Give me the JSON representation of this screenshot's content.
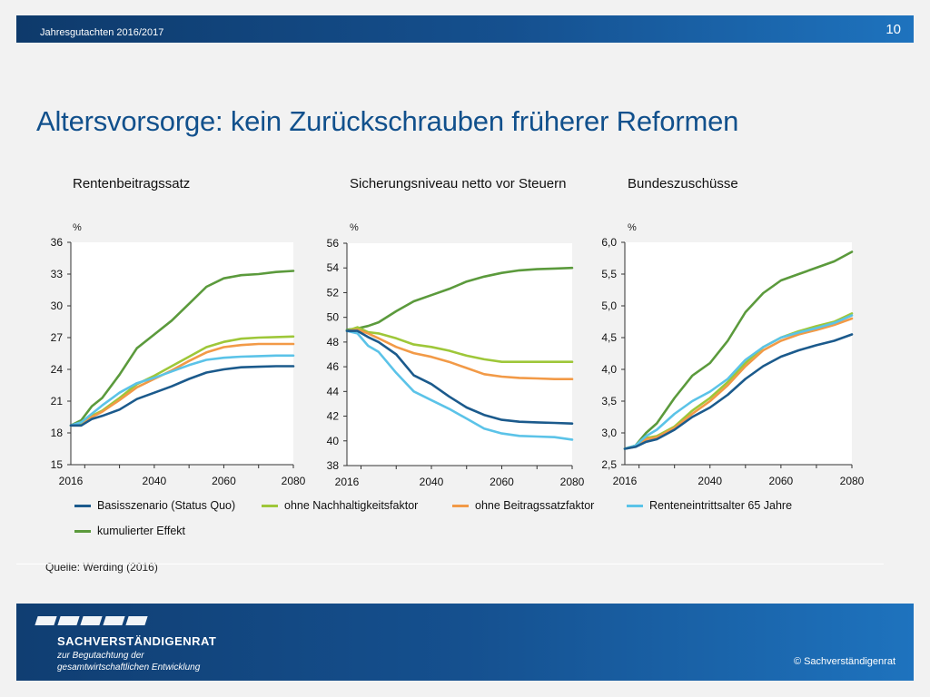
{
  "header": {
    "subtitle": "Jahresgutachten 2016/2017",
    "page_number": "10"
  },
  "title": "Altersvorsorge: kein Zurückschrauben früherer Reformen",
  "source": "Quelle: Werding (2016)",
  "footer": {
    "org_name": "SACHVERSTÄNDIGENRAT",
    "org_sub1": "zur Begutachtung der",
    "org_sub2": "gesamtwirtschaftlichen Entwicklung",
    "copyright": "© Sachverständigenrat"
  },
  "colors": {
    "basis": "#1b5a8c",
    "nachhaltigkeit": "#9ec739",
    "beitrag": "#f29a47",
    "rente65": "#5bc3e8",
    "kumuliert": "#5b9a3c"
  },
  "legend": [
    {
      "key": "basis",
      "label": "Basisszenario (Status Quo)"
    },
    {
      "key": "nachhaltigkeit",
      "label": "ohne Nachhaltigkeitsfaktor"
    },
    {
      "key": "beitrag",
      "label": "ohne Beitragssatzfaktor"
    },
    {
      "key": "rente65",
      "label": "Renteneintrittsalter 65 Jahre"
    },
    {
      "key": "kumuliert",
      "label": "kumulierter Effekt"
    }
  ],
  "chart_data": [
    {
      "type": "line",
      "title": "Rentenbeitragssatz",
      "unit": "%",
      "ylim": [
        15,
        36
      ],
      "yticks": [
        "15",
        "18",
        "21",
        "24",
        "27",
        "30",
        "33",
        "36"
      ],
      "ytick_values": [
        15,
        18,
        21,
        24,
        27,
        30,
        33,
        36
      ],
      "xlim": [
        2016,
        2080
      ],
      "xticks": [
        "2016",
        "2040",
        "2060",
        "2080"
      ],
      "xtick_values": [
        2016,
        2040,
        2060,
        2080
      ],
      "x": [
        2016,
        2019,
        2022,
        2025,
        2030,
        2035,
        2040,
        2045,
        2050,
        2055,
        2060,
        2065,
        2070,
        2075,
        2080
      ],
      "series": [
        {
          "name": "Basisszenario (Status Quo)",
          "key": "basis",
          "values": [
            18.7,
            18.7,
            19.3,
            19.6,
            20.2,
            21.2,
            21.8,
            22.4,
            23.1,
            23.7,
            24.0,
            24.2,
            24.25,
            24.3,
            24.3
          ]
        },
        {
          "name": "ohne Nachhaltigkeitsfaktor",
          "key": "nachhaltigkeit",
          "values": [
            18.7,
            18.8,
            19.6,
            20.1,
            21.3,
            22.6,
            23.4,
            24.3,
            25.2,
            26.1,
            26.6,
            26.9,
            27.0,
            27.05,
            27.1
          ]
        },
        {
          "name": "ohne Beitragssatzfaktor",
          "key": "beitrag",
          "values": [
            18.7,
            18.7,
            19.5,
            20.0,
            21.1,
            22.3,
            23.1,
            23.9,
            24.8,
            25.6,
            26.1,
            26.3,
            26.4,
            26.4,
            26.4
          ]
        },
        {
          "name": "Renteneintrittsalter 65 Jahre",
          "key": "rente65",
          "values": [
            18.7,
            19.0,
            19.8,
            20.6,
            21.8,
            22.7,
            23.2,
            23.8,
            24.4,
            24.9,
            25.1,
            25.2,
            25.25,
            25.3,
            25.3
          ]
        },
        {
          "name": "kumulierter Effekt",
          "key": "kumuliert",
          "values": [
            18.7,
            19.2,
            20.5,
            21.3,
            23.5,
            26.0,
            27.3,
            28.6,
            30.2,
            31.8,
            32.6,
            32.9,
            33.0,
            33.2,
            33.3
          ]
        }
      ]
    },
    {
      "type": "line",
      "title": "Sicherungsniveau netto vor Steuern",
      "unit": "%",
      "ylim": [
        38,
        56
      ],
      "yticks": [
        "38",
        "40",
        "42",
        "44",
        "46",
        "48",
        "50",
        "52",
        "54",
        "56"
      ],
      "ytick_values": [
        38,
        40,
        42,
        44,
        46,
        48,
        50,
        52,
        54,
        56
      ],
      "xlim": [
        2016,
        2080
      ],
      "xticks": [
        "2016",
        "2040",
        "2060",
        "2080"
      ],
      "xtick_values": [
        2016,
        2040,
        2060,
        2080
      ],
      "x": [
        2016,
        2019,
        2022,
        2025,
        2030,
        2035,
        2040,
        2045,
        2050,
        2055,
        2060,
        2065,
        2070,
        2075,
        2080
      ],
      "series": [
        {
          "name": "Basisszenario (Status Quo)",
          "key": "basis",
          "values": [
            48.9,
            48.9,
            48.4,
            48.0,
            47.0,
            45.3,
            44.6,
            43.6,
            42.7,
            42.1,
            41.7,
            41.55,
            41.5,
            41.45,
            41.4
          ]
        },
        {
          "name": "ohne Nachhaltigkeitsfaktor",
          "key": "nachhaltigkeit",
          "values": [
            48.9,
            49.2,
            48.8,
            48.7,
            48.3,
            47.8,
            47.6,
            47.3,
            46.9,
            46.6,
            46.4,
            46.4,
            46.4,
            46.4,
            46.4
          ]
        },
        {
          "name": "ohne Beitragssatzfaktor",
          "key": "beitrag",
          "values": [
            48.9,
            49.0,
            48.7,
            48.3,
            47.6,
            47.1,
            46.8,
            46.4,
            45.9,
            45.4,
            45.2,
            45.1,
            45.05,
            45.0,
            45.0
          ]
        },
        {
          "name": "Renteneintrittsalter 65 Jahre",
          "key": "rente65",
          "values": [
            48.9,
            48.7,
            47.7,
            47.2,
            45.5,
            44.0,
            43.3,
            42.6,
            41.8,
            41.0,
            40.6,
            40.4,
            40.35,
            40.3,
            40.1
          ]
        },
        {
          "name": "kumulierter Effekt",
          "key": "kumuliert",
          "values": [
            49.0,
            49.1,
            49.3,
            49.6,
            50.5,
            51.3,
            51.8,
            52.3,
            52.9,
            53.3,
            53.6,
            53.8,
            53.9,
            53.95,
            54.0
          ]
        }
      ]
    },
    {
      "type": "line",
      "title": "Bundeszuschüsse",
      "unit": "%",
      "ylim": [
        2.5,
        6.0
      ],
      "yticks": [
        "2,5",
        "3,0",
        "3,5",
        "4,0",
        "4,5",
        "5,0",
        "5,5",
        "6,0"
      ],
      "ytick_values": [
        2.5,
        3.0,
        3.5,
        4.0,
        4.5,
        5.0,
        5.5,
        6.0
      ],
      "xlim": [
        2016,
        2080
      ],
      "xticks": [
        "2016",
        "2040",
        "2060",
        "2080"
      ],
      "xtick_values": [
        2016,
        2040,
        2060,
        2080
      ],
      "x": [
        2016,
        2019,
        2022,
        2025,
        2030,
        2035,
        2040,
        2045,
        2050,
        2055,
        2060,
        2065,
        2070,
        2075,
        2080
      ],
      "series": [
        {
          "name": "Basisszenario (Status Quo)",
          "key": "basis",
          "values": [
            2.75,
            2.78,
            2.86,
            2.9,
            3.05,
            3.25,
            3.4,
            3.6,
            3.85,
            4.05,
            4.2,
            4.3,
            4.38,
            4.45,
            4.55
          ]
        },
        {
          "name": "ohne Nachhaltigkeitsfaktor",
          "key": "nachhaltigkeit",
          "values": [
            2.75,
            2.8,
            2.92,
            2.95,
            3.1,
            3.35,
            3.55,
            3.8,
            4.1,
            4.35,
            4.5,
            4.6,
            4.68,
            4.75,
            4.88
          ]
        },
        {
          "name": "ohne Beitragssatzfaktor",
          "key": "beitrag",
          "values": [
            2.75,
            2.78,
            2.9,
            2.93,
            3.08,
            3.3,
            3.5,
            3.75,
            4.05,
            4.3,
            4.45,
            4.55,
            4.62,
            4.7,
            4.8
          ]
        },
        {
          "name": "Renteneintrittsalter 65 Jahre",
          "key": "rente65",
          "values": [
            2.75,
            2.8,
            2.95,
            3.05,
            3.3,
            3.5,
            3.65,
            3.85,
            4.15,
            4.35,
            4.5,
            4.58,
            4.65,
            4.73,
            4.85
          ]
        },
        {
          "name": "kumulierter Effekt",
          "key": "kumuliert",
          "values": [
            2.75,
            2.8,
            3.0,
            3.15,
            3.55,
            3.9,
            4.1,
            4.45,
            4.9,
            5.2,
            5.4,
            5.5,
            5.6,
            5.7,
            5.85
          ]
        }
      ]
    }
  ]
}
